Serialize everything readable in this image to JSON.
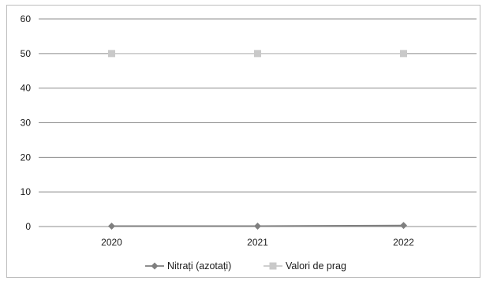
{
  "chart_data": {
    "type": "line",
    "categories": [
      "2020",
      "2021",
      "2022"
    ],
    "series": [
      {
        "name": "Nitrați (azotați)",
        "values": [
          0.1,
          0.1,
          0.3
        ],
        "color": "#7f7f7f",
        "marker": "diamond"
      },
      {
        "name": "Valori de prag",
        "values": [
          50,
          50,
          50
        ],
        "color": "#c9c9c9",
        "marker": "square"
      }
    ],
    "y_ticks": [
      "0",
      "10",
      "20",
      "30",
      "40",
      "50",
      "60"
    ],
    "ylim": [
      0,
      60
    ],
    "title": "",
    "xlabel": "",
    "ylabel": "",
    "grid": true,
    "legend_position": "bottom"
  }
}
